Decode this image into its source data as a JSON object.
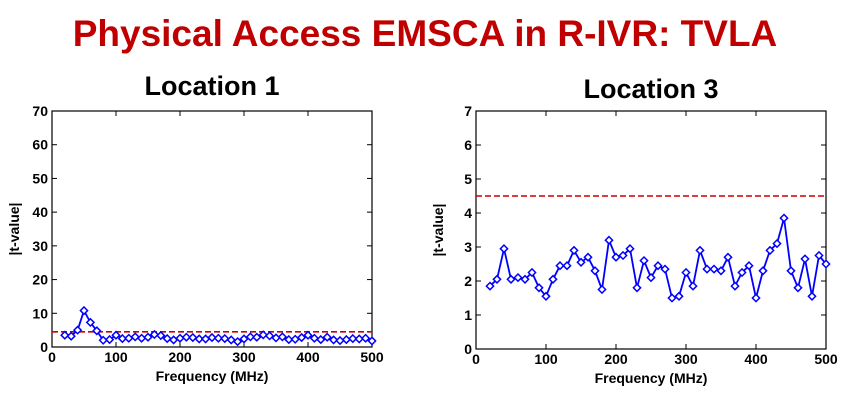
{
  "header": {
    "title": "Physical Access EMSCA in R-IVR: TVLA",
    "title_color": "#c00000"
  },
  "chart_data": [
    {
      "type": "line",
      "title": "Location 1",
      "xlabel": "Frequency (MHz)",
      "ylabel": "|t-value|",
      "xlim": [
        0,
        500
      ],
      "ylim": [
        0,
        70
      ],
      "xticks": [
        0,
        100,
        200,
        300,
        400,
        500
      ],
      "yticks": [
        0,
        10,
        20,
        30,
        40,
        50,
        60,
        70
      ],
      "grid": false,
      "threshold": 4.5,
      "threshold_color": "#cc0000",
      "series_color": "#0000ff",
      "x": [
        20,
        30,
        40,
        50,
        60,
        70,
        80,
        90,
        100,
        110,
        120,
        130,
        140,
        150,
        160,
        170,
        180,
        190,
        200,
        210,
        220,
        230,
        240,
        250,
        260,
        270,
        280,
        290,
        300,
        310,
        320,
        330,
        340,
        350,
        360,
        370,
        380,
        390,
        400,
        410,
        420,
        430,
        440,
        450,
        460,
        470,
        480,
        490,
        500
      ],
      "values": [
        3.5,
        3.2,
        5.0,
        10.8,
        7.3,
        4.8,
        2.0,
        2.2,
        3.5,
        2.5,
        2.6,
        3.0,
        2.6,
        2.9,
        3.7,
        3.4,
        2.5,
        2.1,
        2.6,
        2.9,
        2.8,
        2.4,
        2.4,
        2.8,
        2.6,
        2.5,
        2.1,
        1.6,
        2.4,
        3.0,
        2.9,
        3.6,
        3.3,
        2.7,
        3.0,
        2.2,
        2.3,
        2.8,
        3.5,
        2.6,
        2.2,
        2.9,
        2.1,
        1.9,
        2.2,
        2.5,
        2.4,
        2.6,
        1.8
      ]
    },
    {
      "type": "line",
      "title": "Location 3",
      "xlabel": "Frequency (MHz)",
      "ylabel": "|t-value|",
      "xlim": [
        0,
        500
      ],
      "ylim": [
        0,
        7
      ],
      "xticks": [
        0,
        100,
        200,
        300,
        400,
        500
      ],
      "yticks": [
        0,
        1,
        2,
        3,
        4,
        5,
        6,
        7
      ],
      "grid": false,
      "threshold": 4.5,
      "threshold_color": "#cc0000",
      "series_color": "#0000ff",
      "x": [
        20,
        30,
        40,
        50,
        60,
        70,
        80,
        90,
        100,
        110,
        120,
        130,
        140,
        150,
        160,
        170,
        180,
        190,
        200,
        210,
        220,
        230,
        240,
        250,
        260,
        270,
        280,
        290,
        300,
        310,
        320,
        330,
        340,
        350,
        360,
        370,
        380,
        390,
        400,
        410,
        420,
        430,
        440,
        450,
        460,
        470,
        480,
        490,
        500
      ],
      "values": [
        1.85,
        2.05,
        2.95,
        2.05,
        2.1,
        2.05,
        2.25,
        1.8,
        1.55,
        2.05,
        2.45,
        2.45,
        2.9,
        2.55,
        2.7,
        2.3,
        1.75,
        3.2,
        2.7,
        2.75,
        2.95,
        1.8,
        2.6,
        2.1,
        2.45,
        2.35,
        1.5,
        1.55,
        2.25,
        1.85,
        2.9,
        2.35,
        2.35,
        2.3,
        2.7,
        1.85,
        2.25,
        2.45,
        1.5,
        2.3,
        2.9,
        3.1,
        3.85,
        2.3,
        1.8,
        2.65,
        1.55,
        2.75,
        2.5
      ]
    }
  ]
}
